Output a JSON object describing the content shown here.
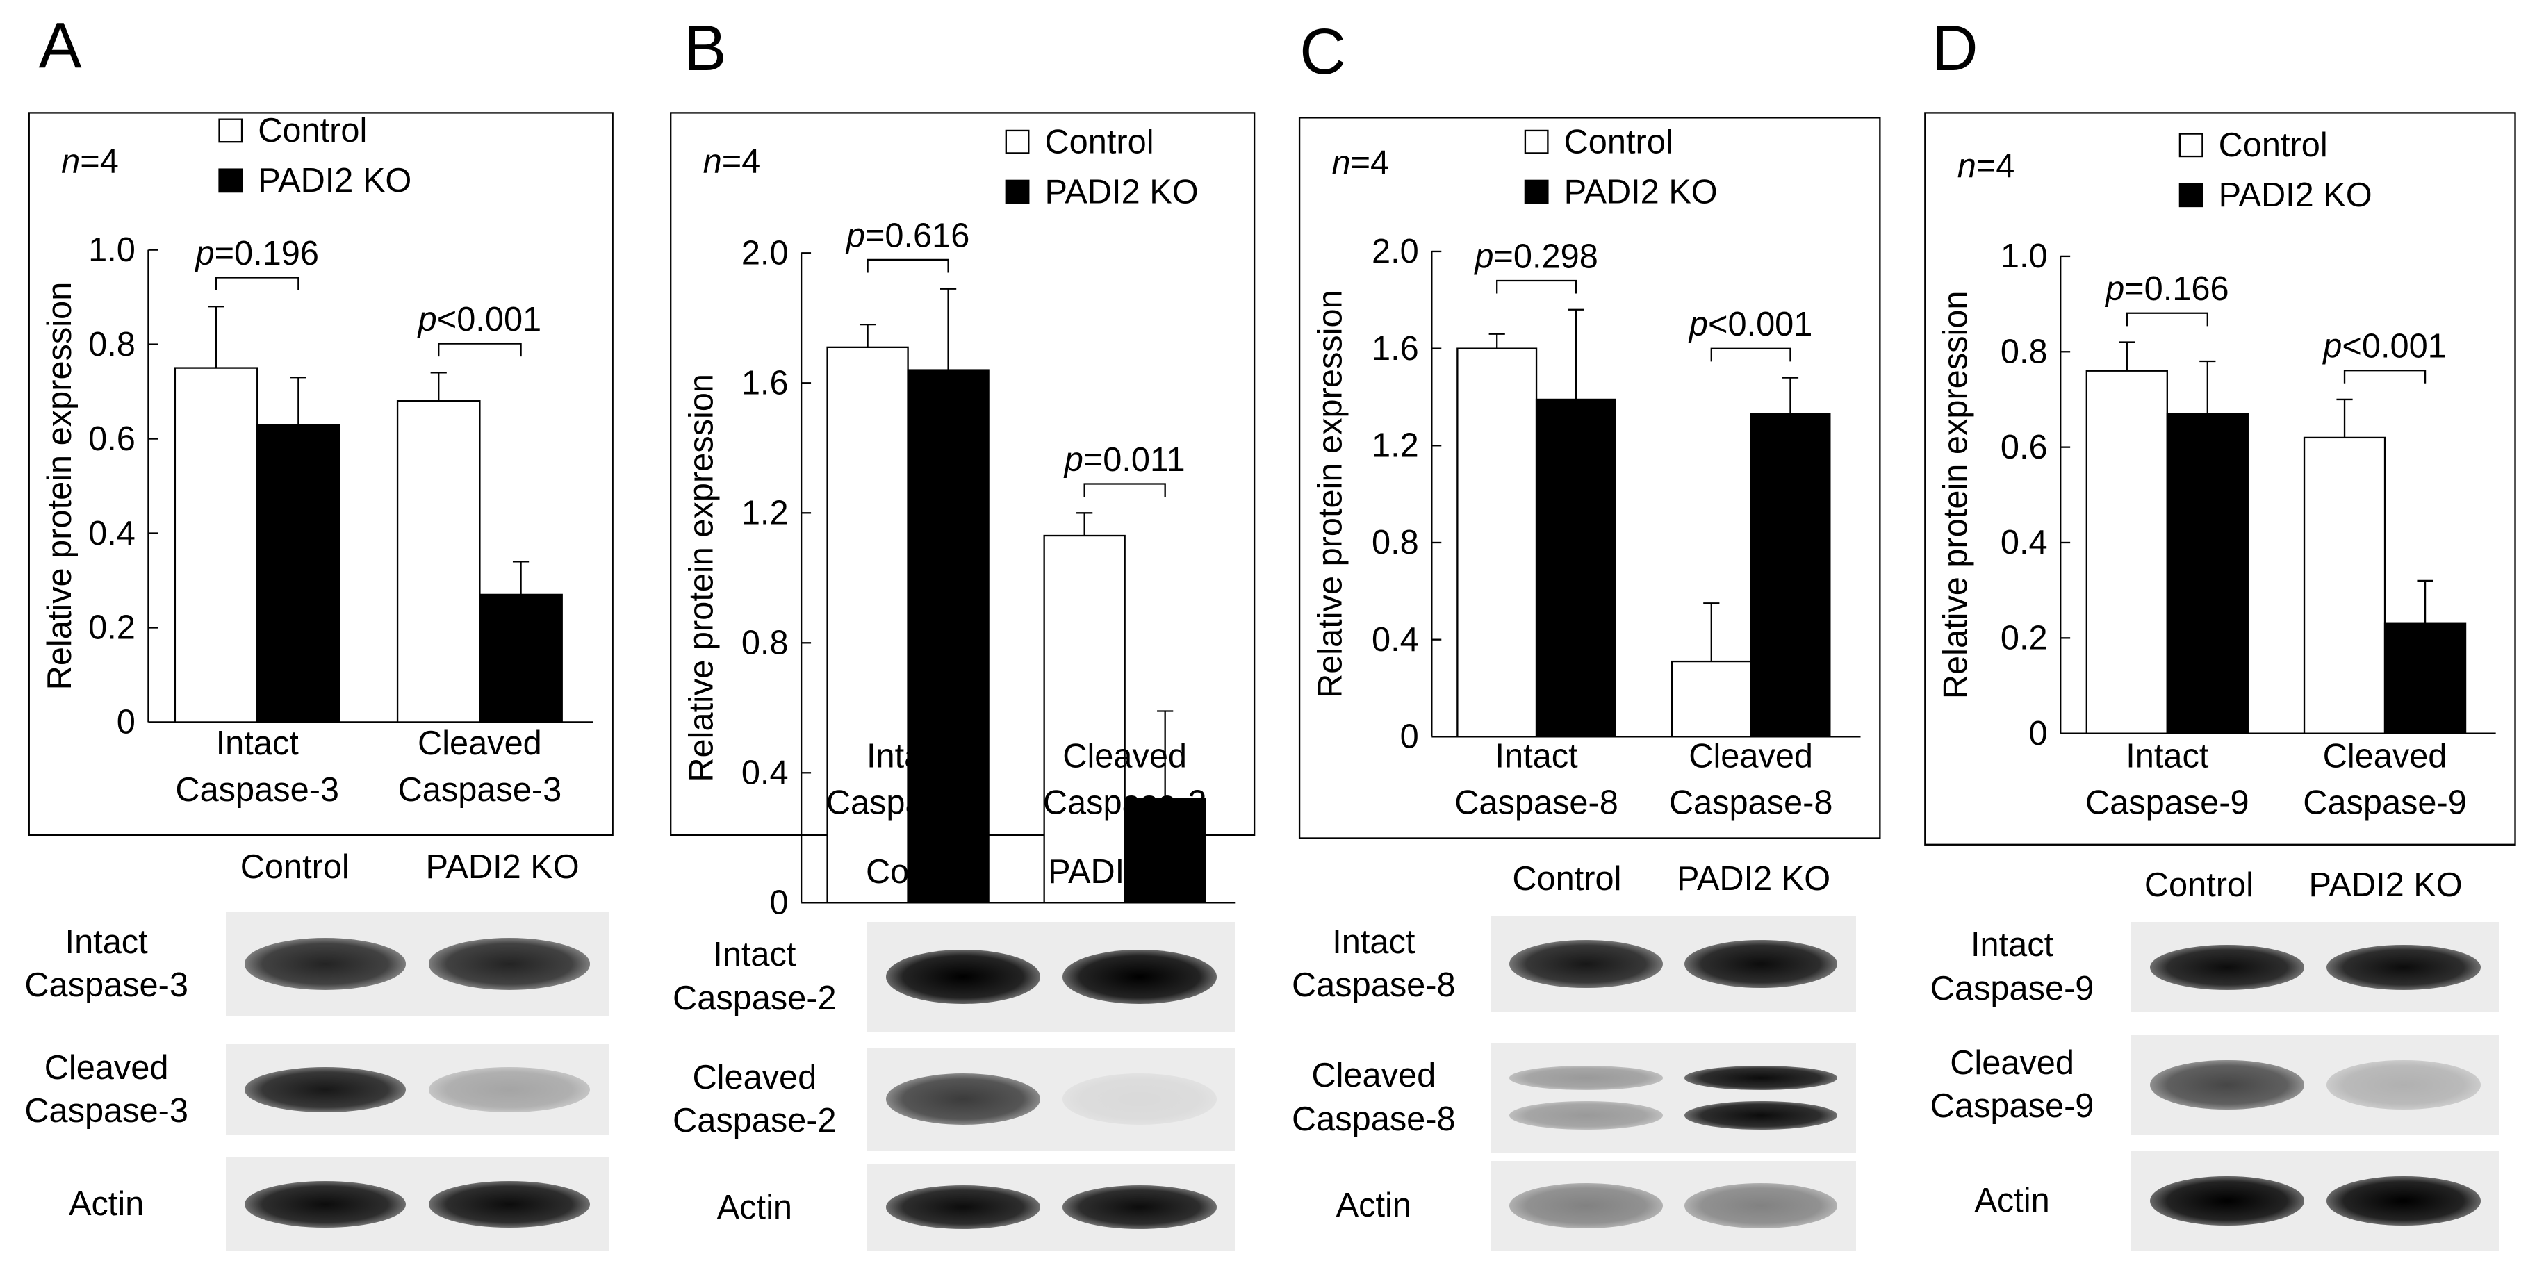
{
  "panels": [
    {
      "letter": "A",
      "n_prefix": "n",
      "n_value": "=4",
      "legend": [
        {
          "name": "Control",
          "color": "#ffffff"
        },
        {
          "name": "PADI2 KO",
          "color": "#000000"
        }
      ],
      "ylabel": "Relative protein expression",
      "yticks": [
        "0",
        "0.2",
        "0.4",
        "0.6",
        "0.8",
        "1.0"
      ],
      "ylim": [
        0,
        1.0
      ],
      "categories": [
        [
          "Intact",
          "Caspase-3"
        ],
        [
          "Cleaved",
          "Caspase-3"
        ]
      ],
      "chart_data": {
        "type": "bar",
        "categories": [
          "Intact Caspase-3",
          "Cleaved Caspase-3"
        ],
        "series": [
          {
            "name": "Control",
            "values": [
              0.75,
              0.68
            ],
            "errors": [
              0.13,
              0.06
            ]
          },
          {
            "name": "PADI2 KO",
            "values": [
              0.63,
              0.27
            ],
            "errors": [
              0.1,
              0.07
            ]
          }
        ],
        "ylabel": "Relative protein expression",
        "ylim": [
          0,
          1.0
        ]
      },
      "pvalues": [
        {
          "p": "p",
          "rest": "=0.196"
        },
        {
          "p": "p",
          "rest": "<0.001"
        }
      ],
      "blot": {
        "headers": [
          "Control",
          "PADI2 KO"
        ],
        "rows": [
          {
            "label": [
              "Intact",
              "Caspase-3"
            ],
            "control": 0.85,
            "ko": 0.85
          },
          {
            "label": [
              "Cleaved",
              "Caspase-3"
            ],
            "control": 0.9,
            "ko": 0.3
          },
          {
            "label": [
              "Actin"
            ],
            "control": 0.95,
            "ko": 0.95
          }
        ]
      }
    },
    {
      "letter": "B",
      "n_prefix": "n",
      "n_value": "=4",
      "legend": [
        {
          "name": "Control",
          "color": "#ffffff"
        },
        {
          "name": "PADI2 KO",
          "color": "#000000"
        }
      ],
      "ylabel": "Relative protein expression",
      "yticks": [
        "0",
        "0.4",
        "0.8",
        "1.2",
        "1.6",
        "2.0"
      ],
      "ylim": [
        0,
        2.0
      ],
      "categories": [
        [
          "Intact",
          "Caspase-2"
        ],
        [
          "Cleaved",
          "Caspase-2"
        ]
      ],
      "chart_data": {
        "type": "bar",
        "categories": [
          "Intact Caspase-2",
          "Cleaved Caspase-2"
        ],
        "series": [
          {
            "name": "Control",
            "values": [
              1.71,
              1.13
            ],
            "errors": [
              0.07,
              0.07
            ]
          },
          {
            "name": "PADI2 KO",
            "values": [
              1.64,
              0.32
            ],
            "errors": [
              0.25,
              0.27
            ]
          }
        ],
        "ylabel": "Relative protein expression",
        "ylim": [
          0,
          2.0
        ]
      },
      "pvalues": [
        {
          "p": "p",
          "rest": "=0.616"
        },
        {
          "p": "p",
          "rest": "=0.011"
        }
      ],
      "blot": {
        "headers": [
          "Control",
          "PADI2 KO"
        ],
        "rows": [
          {
            "label": [
              "Intact",
              "Caspase-2"
            ],
            "control": 1.0,
            "ko": 1.0
          },
          {
            "label": [
              "Cleaved",
              "Caspase-2"
            ],
            "control": 0.75,
            "ko": 0.08
          },
          {
            "label": [
              "Actin"
            ],
            "control": 0.95,
            "ko": 0.95
          }
        ]
      }
    },
    {
      "letter": "C",
      "n_prefix": "n",
      "n_value": "=4",
      "legend": [
        {
          "name": "Control",
          "color": "#ffffff"
        },
        {
          "name": "PADI2 KO",
          "color": "#000000"
        }
      ],
      "ylabel": "Relative protein expression",
      "yticks": [
        "0",
        "0.4",
        "0.8",
        "1.2",
        "1.6",
        "2.0"
      ],
      "ylim": [
        0,
        2.0
      ],
      "categories": [
        [
          "Intact",
          "Caspase-8"
        ],
        [
          "Cleaved",
          "Caspase-8"
        ]
      ],
      "chart_data": {
        "type": "bar",
        "categories": [
          "Intact Caspase-8",
          "Cleaved Caspase-8"
        ],
        "series": [
          {
            "name": "Control",
            "values": [
              1.6,
              0.31
            ],
            "errors": [
              0.06,
              0.24
            ]
          },
          {
            "name": "PADI2 KO",
            "values": [
              1.39,
              1.33
            ],
            "errors": [
              0.37,
              0.15
            ]
          }
        ],
        "ylabel": "Relative protein expression",
        "ylim": [
          0,
          2.0
        ]
      },
      "pvalues": [
        {
          "p": "p",
          "rest": "=0.298"
        },
        {
          "p": "p",
          "rest": "<0.001"
        }
      ],
      "blot": {
        "headers": [
          "Control",
          "PADI2 KO"
        ],
        "rows": [
          {
            "label": [
              "Intact",
              "Caspase-8"
            ],
            "control": 0.9,
            "ko": 0.95
          },
          {
            "label": [
              "Cleaved",
              "Caspase-8"
            ],
            "control": 0.35,
            "ko": 0.95,
            "double": true
          },
          {
            "label": [
              "Actin"
            ],
            "control": 0.45,
            "ko": 0.45
          }
        ]
      }
    },
    {
      "letter": "D",
      "n_prefix": "n",
      "n_value": "=4",
      "legend": [
        {
          "name": "Control",
          "color": "#ffffff"
        },
        {
          "name": "PADI2 KO",
          "color": "#000000"
        }
      ],
      "ylabel": "Relative protein expression",
      "yticks": [
        "0",
        "0.2",
        "0.4",
        "0.6",
        "0.8",
        "1.0"
      ],
      "ylim": [
        0,
        1.0
      ],
      "categories": [
        [
          "Intact",
          "Caspase-9"
        ],
        [
          "Cleaved",
          "Caspase-9"
        ]
      ],
      "chart_data": {
        "type": "bar",
        "categories": [
          "Intact Caspase-9",
          "Cleaved Caspase-9"
        ],
        "series": [
          {
            "name": "Control",
            "values": [
              0.76,
              0.62
            ],
            "errors": [
              0.06,
              0.08
            ]
          },
          {
            "name": "PADI2 KO",
            "values": [
              0.67,
              0.23
            ],
            "errors": [
              0.11,
              0.09
            ]
          }
        ],
        "ylabel": "Relative protein expression",
        "ylim": [
          0,
          1.0
        ]
      },
      "pvalues": [
        {
          "p": "p",
          "rest": "=0.166"
        },
        {
          "p": "p",
          "rest": "<0.001"
        }
      ],
      "blot": {
        "headers": [
          "Control",
          "PADI2 KO"
        ],
        "rows": [
          {
            "label": [
              "Intact",
              "Caspase-9"
            ],
            "control": 0.95,
            "ko": 0.95
          },
          {
            "label": [
              "Cleaved",
              "Caspase-9"
            ],
            "control": 0.7,
            "ko": 0.25
          },
          {
            "label": [
              "Actin"
            ],
            "control": 1.0,
            "ko": 1.0
          }
        ]
      }
    }
  ]
}
